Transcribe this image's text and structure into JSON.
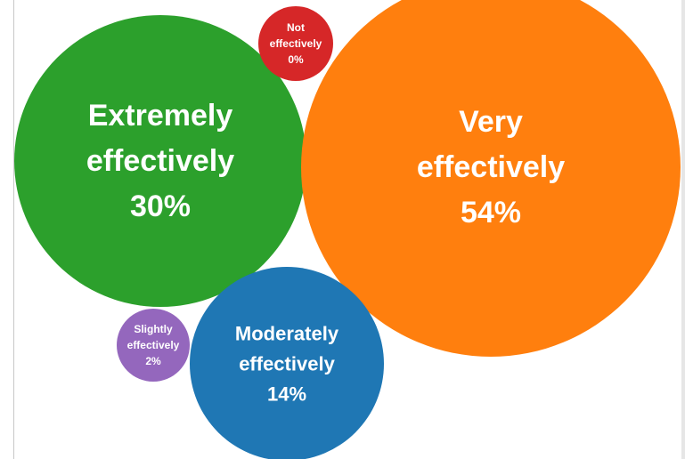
{
  "chart_data": {
    "type": "bubble",
    "title": "",
    "series": [
      {
        "category": "Extremely effectively",
        "value": 30,
        "value_label": "30%",
        "lines": [
          "Extremely",
          "effectively"
        ],
        "color": "#2ca02c"
      },
      {
        "category": "Very effectively",
        "value": 54,
        "value_label": "54%",
        "lines": [
          "Very",
          "effectively"
        ],
        "color": "#ff7f0e"
      },
      {
        "category": "Moderately effectively",
        "value": 14,
        "value_label": "14%",
        "lines": [
          "Moderately",
          "effectively"
        ],
        "color": "#1f77b4"
      },
      {
        "category": "Slightly effectively",
        "value": 2,
        "value_label": "2%",
        "lines": [
          "Slightly",
          "effectively"
        ],
        "color": "#9467bd"
      },
      {
        "category": "Not effectively",
        "value": 0,
        "value_label": "0%",
        "lines": [
          "Not",
          "effectively"
        ],
        "color": "#d62728"
      }
    ],
    "legend": "none",
    "grid": false
  }
}
